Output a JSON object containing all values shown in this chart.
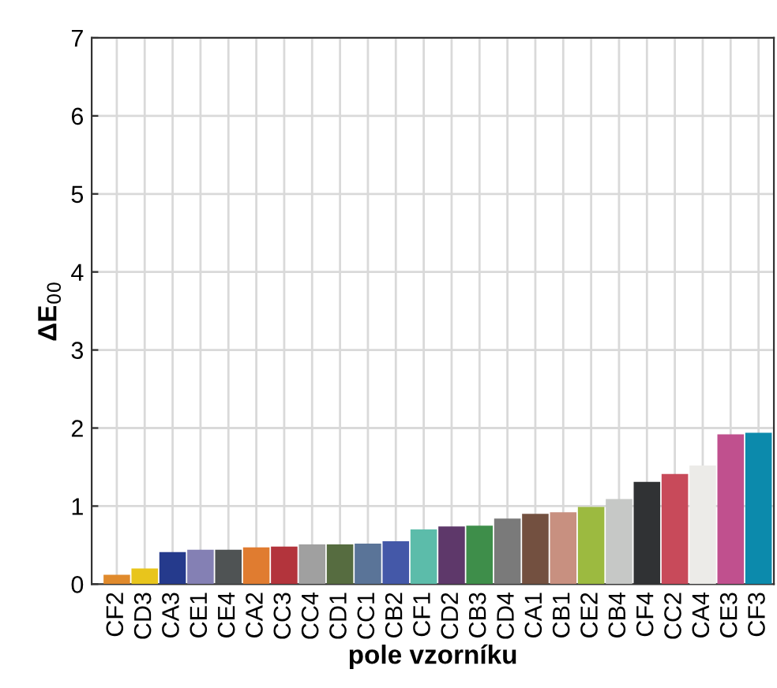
{
  "chart_data": {
    "type": "bar",
    "xlabel": "pole vzorníku",
    "ylabel": "ΔE$_{00}$",
    "categories": [
      "CF2",
      "CD3",
      "CA3",
      "CE1",
      "CE4",
      "CA2",
      "CC3",
      "CC4",
      "CD1",
      "CC1",
      "CB2",
      "CF1",
      "CD2",
      "CB3",
      "CD4",
      "CA1",
      "CB1",
      "CE2",
      "CB4",
      "CF4",
      "CC2",
      "CA4",
      "CE3",
      "CF3"
    ],
    "values": [
      0.12,
      0.2,
      0.41,
      0.44,
      0.44,
      0.47,
      0.48,
      0.51,
      0.51,
      0.52,
      0.55,
      0.7,
      0.74,
      0.75,
      0.84,
      0.9,
      0.92,
      0.99,
      1.09,
      1.31,
      1.41,
      1.52,
      1.92,
      1.94
    ],
    "colors": [
      "#e08a2c",
      "#e8c51c",
      "#253a8c",
      "#8480b4",
      "#4f5354",
      "#e07c30",
      "#b3343c",
      "#a0a0a0",
      "#566c40",
      "#5a7498",
      "#4458a8",
      "#5cbcaa",
      "#5e386a",
      "#3e8e4a",
      "#7a7a7a",
      "#735040",
      "#c89080",
      "#9cba40",
      "#c6c8c6",
      "#303234",
      "#c84a5a",
      "#ecebe8",
      "#c0508e",
      "#0c8aac"
    ],
    "ylim": [
      0,
      7
    ],
    "yticks": [
      0,
      1,
      2,
      3,
      4,
      5,
      6,
      7
    ],
    "grid": true
  }
}
